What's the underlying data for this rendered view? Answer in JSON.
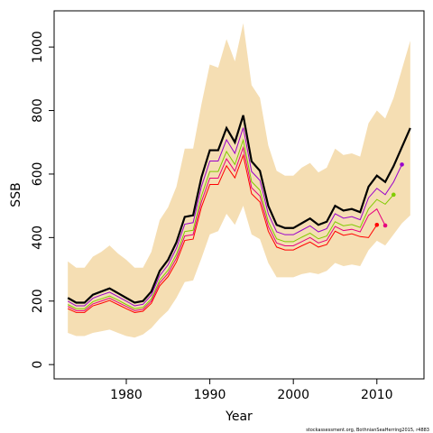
{
  "chart_data": {
    "type": "line",
    "x_label": "Year",
    "y_label": "SSB",
    "footnote": "stockassessment.org, BothnianSeaHerring2015, r4883",
    "x": [
      1973,
      1974,
      1975,
      1976,
      1977,
      1978,
      1979,
      1980,
      1981,
      1982,
      1983,
      1984,
      1985,
      1986,
      1987,
      1988,
      1989,
      1990,
      1991,
      1992,
      1993,
      1994,
      1995,
      1996,
      1997,
      1998,
      1999,
      2000,
      2001,
      2002,
      2003,
      2004,
      2005,
      2006,
      2007,
      2008,
      2009,
      2010,
      2011,
      2012,
      2013,
      2014
    ],
    "band": {
      "color": "#f5deb3",
      "upper": [
        325,
        305,
        305,
        340,
        355,
        375,
        350,
        330,
        305,
        305,
        355,
        455,
        495,
        560,
        680,
        680,
        820,
        945,
        935,
        1025,
        955,
        1075,
        880,
        840,
        690,
        610,
        595,
        595,
        620,
        635,
        605,
        620,
        680,
        660,
        665,
        655,
        760,
        800,
        775,
        840,
        930,
        1020
      ],
      "lower": [
        100,
        90,
        90,
        100,
        105,
        110,
        100,
        90,
        85,
        95,
        115,
        145,
        170,
        210,
        260,
        265,
        335,
        410,
        420,
        475,
        440,
        500,
        410,
        395,
        320,
        275,
        275,
        275,
        285,
        290,
        285,
        295,
        320,
        310,
        315,
        310,
        360,
        390,
        375,
        410,
        445,
        470
      ]
    },
    "series": [
      {
        "color": "#000000",
        "width": 2.2,
        "values": [
          210,
          195,
          195,
          220,
          230,
          240,
          225,
          210,
          195,
          200,
          230,
          295,
          330,
          385,
          465,
          470,
          590,
          675,
          675,
          745,
          700,
          785,
          640,
          610,
          500,
          440,
          430,
          430,
          445,
          460,
          440,
          450,
          500,
          485,
          490,
          480,
          560,
          595,
          575,
          625,
          685,
          745
        ]
      },
      {
        "color": "#9900cc",
        "width": 1,
        "end_dot": true,
        "values": [
          200,
          185,
          185,
          209,
          219,
          228,
          214,
          200,
          185,
          190,
          219,
          280,
          314,
          366,
          442,
          447,
          561,
          641,
          641,
          708,
          665,
          746,
          608,
          580,
          475,
          418,
          409,
          409,
          423,
          437,
          418,
          428,
          475,
          461,
          466,
          456,
          525,
          555,
          535,
          575,
          630,
          null
        ]
      },
      {
        "color": "#80cc00",
        "width": 1,
        "end_dot": true,
        "values": [
          189,
          176,
          176,
          198,
          207,
          216,
          203,
          189,
          176,
          180,
          207,
          266,
          297,
          347,
          419,
          423,
          531,
          608,
          608,
          671,
          630,
          707,
          576,
          549,
          450,
          396,
          387,
          387,
          401,
          414,
          396,
          405,
          450,
          437,
          441,
          432,
          490,
          520,
          505,
          535,
          null,
          null
        ]
      },
      {
        "color": "#e6007e",
        "width": 1,
        "end_dot": true,
        "values": [
          183,
          170,
          170,
          191,
          200,
          209,
          196,
          183,
          170,
          174,
          200,
          257,
          287,
          335,
          405,
          409,
          513,
          587,
          587,
          648,
          609,
          683,
          557,
          531,
          435,
          383,
          374,
          374,
          387,
          400,
          383,
          392,
          435,
          422,
          426,
          418,
          470,
          490,
          438,
          null,
          null,
          null
        ]
      },
      {
        "color": "#ff0000",
        "width": 1,
        "end_dot": true,
        "values": [
          176,
          164,
          164,
          185,
          193,
          202,
          189,
          176,
          164,
          168,
          193,
          248,
          277,
          323,
          391,
          395,
          496,
          567,
          567,
          626,
          588,
          659,
          538,
          512,
          420,
          370,
          361,
          361,
          374,
          386,
          370,
          378,
          420,
          407,
          412,
          403,
          400,
          440,
          null,
          null,
          null,
          null
        ]
      }
    ],
    "xlim": [
      1971.36,
      2015.64
    ],
    "xticks": [
      1980,
      1990,
      2000,
      2010
    ],
    "ylim": [
      -45,
      1114
    ],
    "yticks": [
      0,
      200,
      400,
      600,
      800,
      1000
    ]
  }
}
